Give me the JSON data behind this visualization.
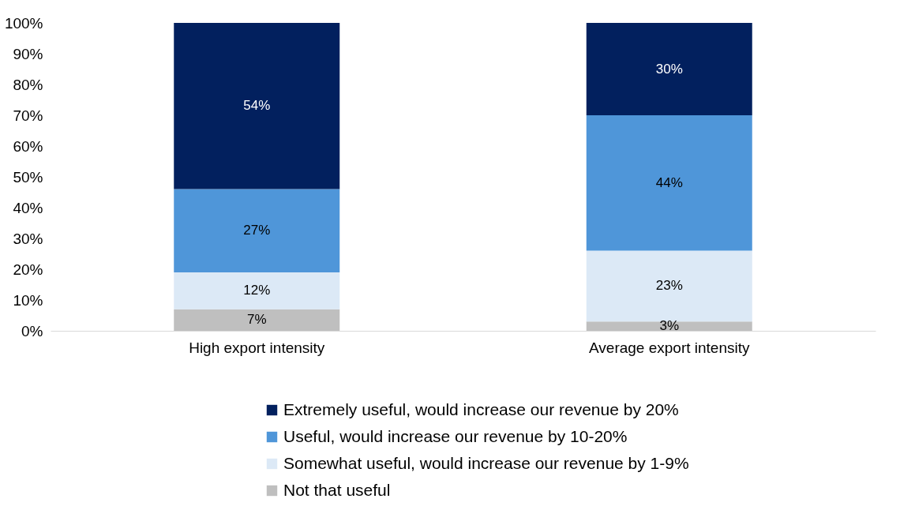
{
  "chart_data": {
    "type": "bar",
    "stacked": true,
    "categories": [
      "High export intensity",
      "Average export intensity"
    ],
    "series": [
      {
        "name": "Not that useful",
        "color": "#bfbfbf",
        "values": [
          7,
          3
        ],
        "value_labels": [
          "7%",
          "3%"
        ]
      },
      {
        "name": "Somewhat useful, would increase our revenue by 1-9%",
        "color": "#dce9f6",
        "values": [
          12,
          23
        ],
        "value_labels": [
          "12%",
          "23%"
        ]
      },
      {
        "name": "Useful, would increase our revenue by 10-20%",
        "color": "#4f96d9",
        "values": [
          27,
          44
        ],
        "value_labels": [
          "27%",
          "44%"
        ]
      },
      {
        "name": "Extremely useful, would increase our revenue by 20%",
        "color": "#02205e",
        "values": [
          54,
          30
        ],
        "value_labels": [
          "54%",
          "30%"
        ]
      }
    ],
    "ylim": [
      0,
      100
    ],
    "yticks": [
      {
        "value": 0,
        "label": "0%"
      },
      {
        "value": 10,
        "label": "10%"
      },
      {
        "value": 20,
        "label": "20%"
      },
      {
        "value": 30,
        "label": "30%"
      },
      {
        "value": 40,
        "label": "40%"
      },
      {
        "value": 50,
        "label": "50%"
      },
      {
        "value": 60,
        "label": "60%"
      },
      {
        "value": 70,
        "label": "70%"
      },
      {
        "value": 80,
        "label": "80%"
      },
      {
        "value": 90,
        "label": "90%"
      },
      {
        "value": 100,
        "label": "100%"
      }
    ],
    "grid": false,
    "legend": "bottom"
  }
}
